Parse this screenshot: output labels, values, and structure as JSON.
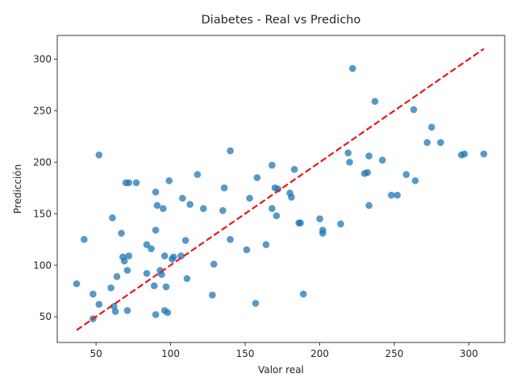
{
  "chart_data": {
    "type": "scatter",
    "title": "Diabetes - Real vs Predicho",
    "xlabel": "Valor real",
    "ylabel": "Predicción",
    "xlim": [
      24,
      324
    ],
    "ylim": [
      25,
      323
    ],
    "xticks": [
      50,
      100,
      150,
      200,
      250,
      300
    ],
    "yticks": [
      50,
      100,
      150,
      200,
      250,
      300
    ],
    "grid": false,
    "legend": "none",
    "colors": {
      "points": "#1f77b4",
      "reference_line": "#e31a1c"
    },
    "reference_line": {
      "style": "dashed",
      "x": [
        37,
        310
      ],
      "y": [
        37,
        310
      ]
    },
    "points": {
      "x": [
        37,
        42,
        48,
        48,
        52,
        52,
        60,
        61,
        62,
        63,
        64,
        67,
        68,
        69,
        70,
        71,
        71,
        72,
        72,
        77,
        84,
        84,
        87,
        89,
        90,
        90,
        90,
        91,
        93,
        94,
        95,
        96,
        96,
        97,
        98,
        99,
        101,
        102,
        107,
        108,
        110,
        111,
        113,
        118,
        122,
        128,
        129,
        135,
        136,
        140,
        140,
        151,
        153,
        157,
        158,
        164,
        168,
        168,
        170,
        171,
        172,
        180,
        181,
        183,
        186,
        187,
        189,
        200,
        202,
        202,
        214,
        219,
        220,
        222,
        230,
        232,
        233,
        233,
        237,
        242,
        248,
        252,
        258,
        263,
        264,
        272,
        275,
        281,
        295,
        297,
        310
      ],
      "y": [
        82,
        125,
        72,
        48,
        62,
        207,
        78,
        146,
        60,
        55,
        89,
        131,
        108,
        104,
        180,
        95,
        56,
        109,
        180,
        180,
        120,
        92,
        116,
        80,
        171,
        52,
        134,
        158,
        95,
        91,
        155,
        109,
        56,
        79,
        54,
        182,
        106,
        108,
        109,
        165,
        124,
        87,
        159,
        188,
        155,
        71,
        101,
        153,
        175,
        125,
        211,
        115,
        165,
        63,
        185,
        120,
        155,
        197,
        175,
        148,
        174,
        170,
        166,
        193,
        141,
        141,
        72,
        145,
        134,
        131,
        140,
        209,
        200,
        291,
        189,
        190,
        206,
        158,
        259,
        202,
        168,
        168,
        188,
        251,
        182,
        219,
        234,
        219,
        207,
        208,
        208
      ]
    }
  }
}
